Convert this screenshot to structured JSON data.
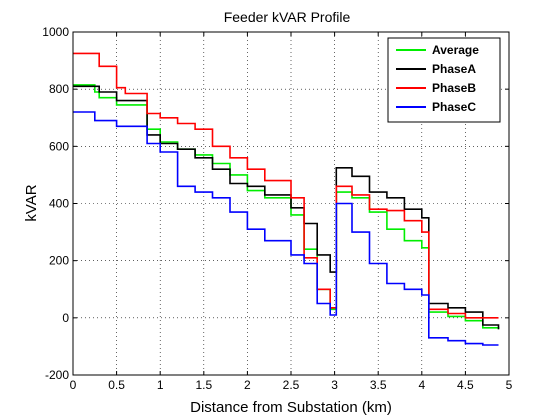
{
  "chart_data": {
    "type": "line",
    "title": "Feeder kVAR Profile",
    "xlabel": "Distance from Substation (km)",
    "ylabel": "kVAR",
    "xlim": [
      0,
      5
    ],
    "ylim": [
      -200,
      1000
    ],
    "xticks": [
      0,
      0.5,
      1,
      1.5,
      2,
      2.5,
      3,
      3.5,
      4,
      4.5,
      5
    ],
    "yticks": [
      -200,
      0,
      200,
      400,
      600,
      800,
      1000
    ],
    "xtick_labels": [
      "0",
      "0.5",
      "1",
      "1.5",
      "2",
      "2.5",
      "3",
      "3.5",
      "4",
      "4.5",
      "5"
    ],
    "ytick_labels": [
      "-200",
      "0",
      "200",
      "400",
      "600",
      "800",
      "1000"
    ],
    "grid": true,
    "legend_position": "top-right",
    "step": true,
    "series": [
      {
        "name": "Average",
        "color": "#00ee00",
        "x": [
          0,
          0.25,
          0.3,
          0.5,
          0.85,
          1.0,
          1.2,
          1.4,
          1.6,
          1.8,
          2.0,
          2.2,
          2.5,
          2.65,
          2.8,
          2.95,
          3.02,
          3.2,
          3.4,
          3.6,
          3.8,
          4.0,
          4.08,
          4.3,
          4.5,
          4.7,
          4.88
        ],
        "y": [
          815,
          790,
          770,
          745,
          660,
          615,
          590,
          570,
          540,
          500,
          445,
          420,
          360,
          240,
          100,
          30,
          440,
          420,
          370,
          310,
          270,
          245,
          20,
          5,
          -10,
          -35,
          -40
        ]
      },
      {
        "name": "PhaseA",
        "color": "#000000",
        "x": [
          0,
          0.3,
          0.5,
          0.85,
          1.0,
          1.2,
          1.4,
          1.6,
          1.8,
          2.0,
          2.2,
          2.5,
          2.65,
          2.8,
          2.95,
          3.02,
          3.2,
          3.4,
          3.6,
          3.8,
          4.0,
          4.08,
          4.3,
          4.5,
          4.7,
          4.88
        ],
        "y": [
          810,
          790,
          760,
          640,
          610,
          590,
          560,
          520,
          470,
          460,
          430,
          385,
          330,
          220,
          160,
          525,
          495,
          440,
          420,
          380,
          350,
          50,
          35,
          20,
          -25,
          -40
        ]
      },
      {
        "name": "PhaseB",
        "color": "#ff0000",
        "x": [
          0,
          0.3,
          0.5,
          0.6,
          0.85,
          1.0,
          1.2,
          1.4,
          1.6,
          1.8,
          2.0,
          2.2,
          2.5,
          2.65,
          2.8,
          2.95,
          3.02,
          3.2,
          3.4,
          3.6,
          3.8,
          4.0,
          4.08,
          4.3,
          4.5,
          4.88
        ],
        "y": [
          925,
          880,
          805,
          785,
          715,
          700,
          680,
          660,
          600,
          560,
          520,
          480,
          420,
          210,
          100,
          35,
          460,
          430,
          380,
          375,
          340,
          300,
          30,
          15,
          0,
          0
        ]
      },
      {
        "name": "PhaseC",
        "color": "#0000ff",
        "x": [
          0,
          0.25,
          0.5,
          0.85,
          1.0,
          1.2,
          1.4,
          1.6,
          1.8,
          2.0,
          2.2,
          2.5,
          2.65,
          2.8,
          2.95,
          3.02,
          3.2,
          3.4,
          3.6,
          3.8,
          4.0,
          4.08,
          4.3,
          4.5,
          4.7,
          4.88
        ],
        "y": [
          720,
          690,
          670,
          610,
          580,
          460,
          440,
          420,
          370,
          310,
          270,
          220,
          190,
          50,
          10,
          400,
          300,
          190,
          120,
          100,
          80,
          -70,
          -80,
          -90,
          -95,
          -95
        ]
      }
    ]
  }
}
